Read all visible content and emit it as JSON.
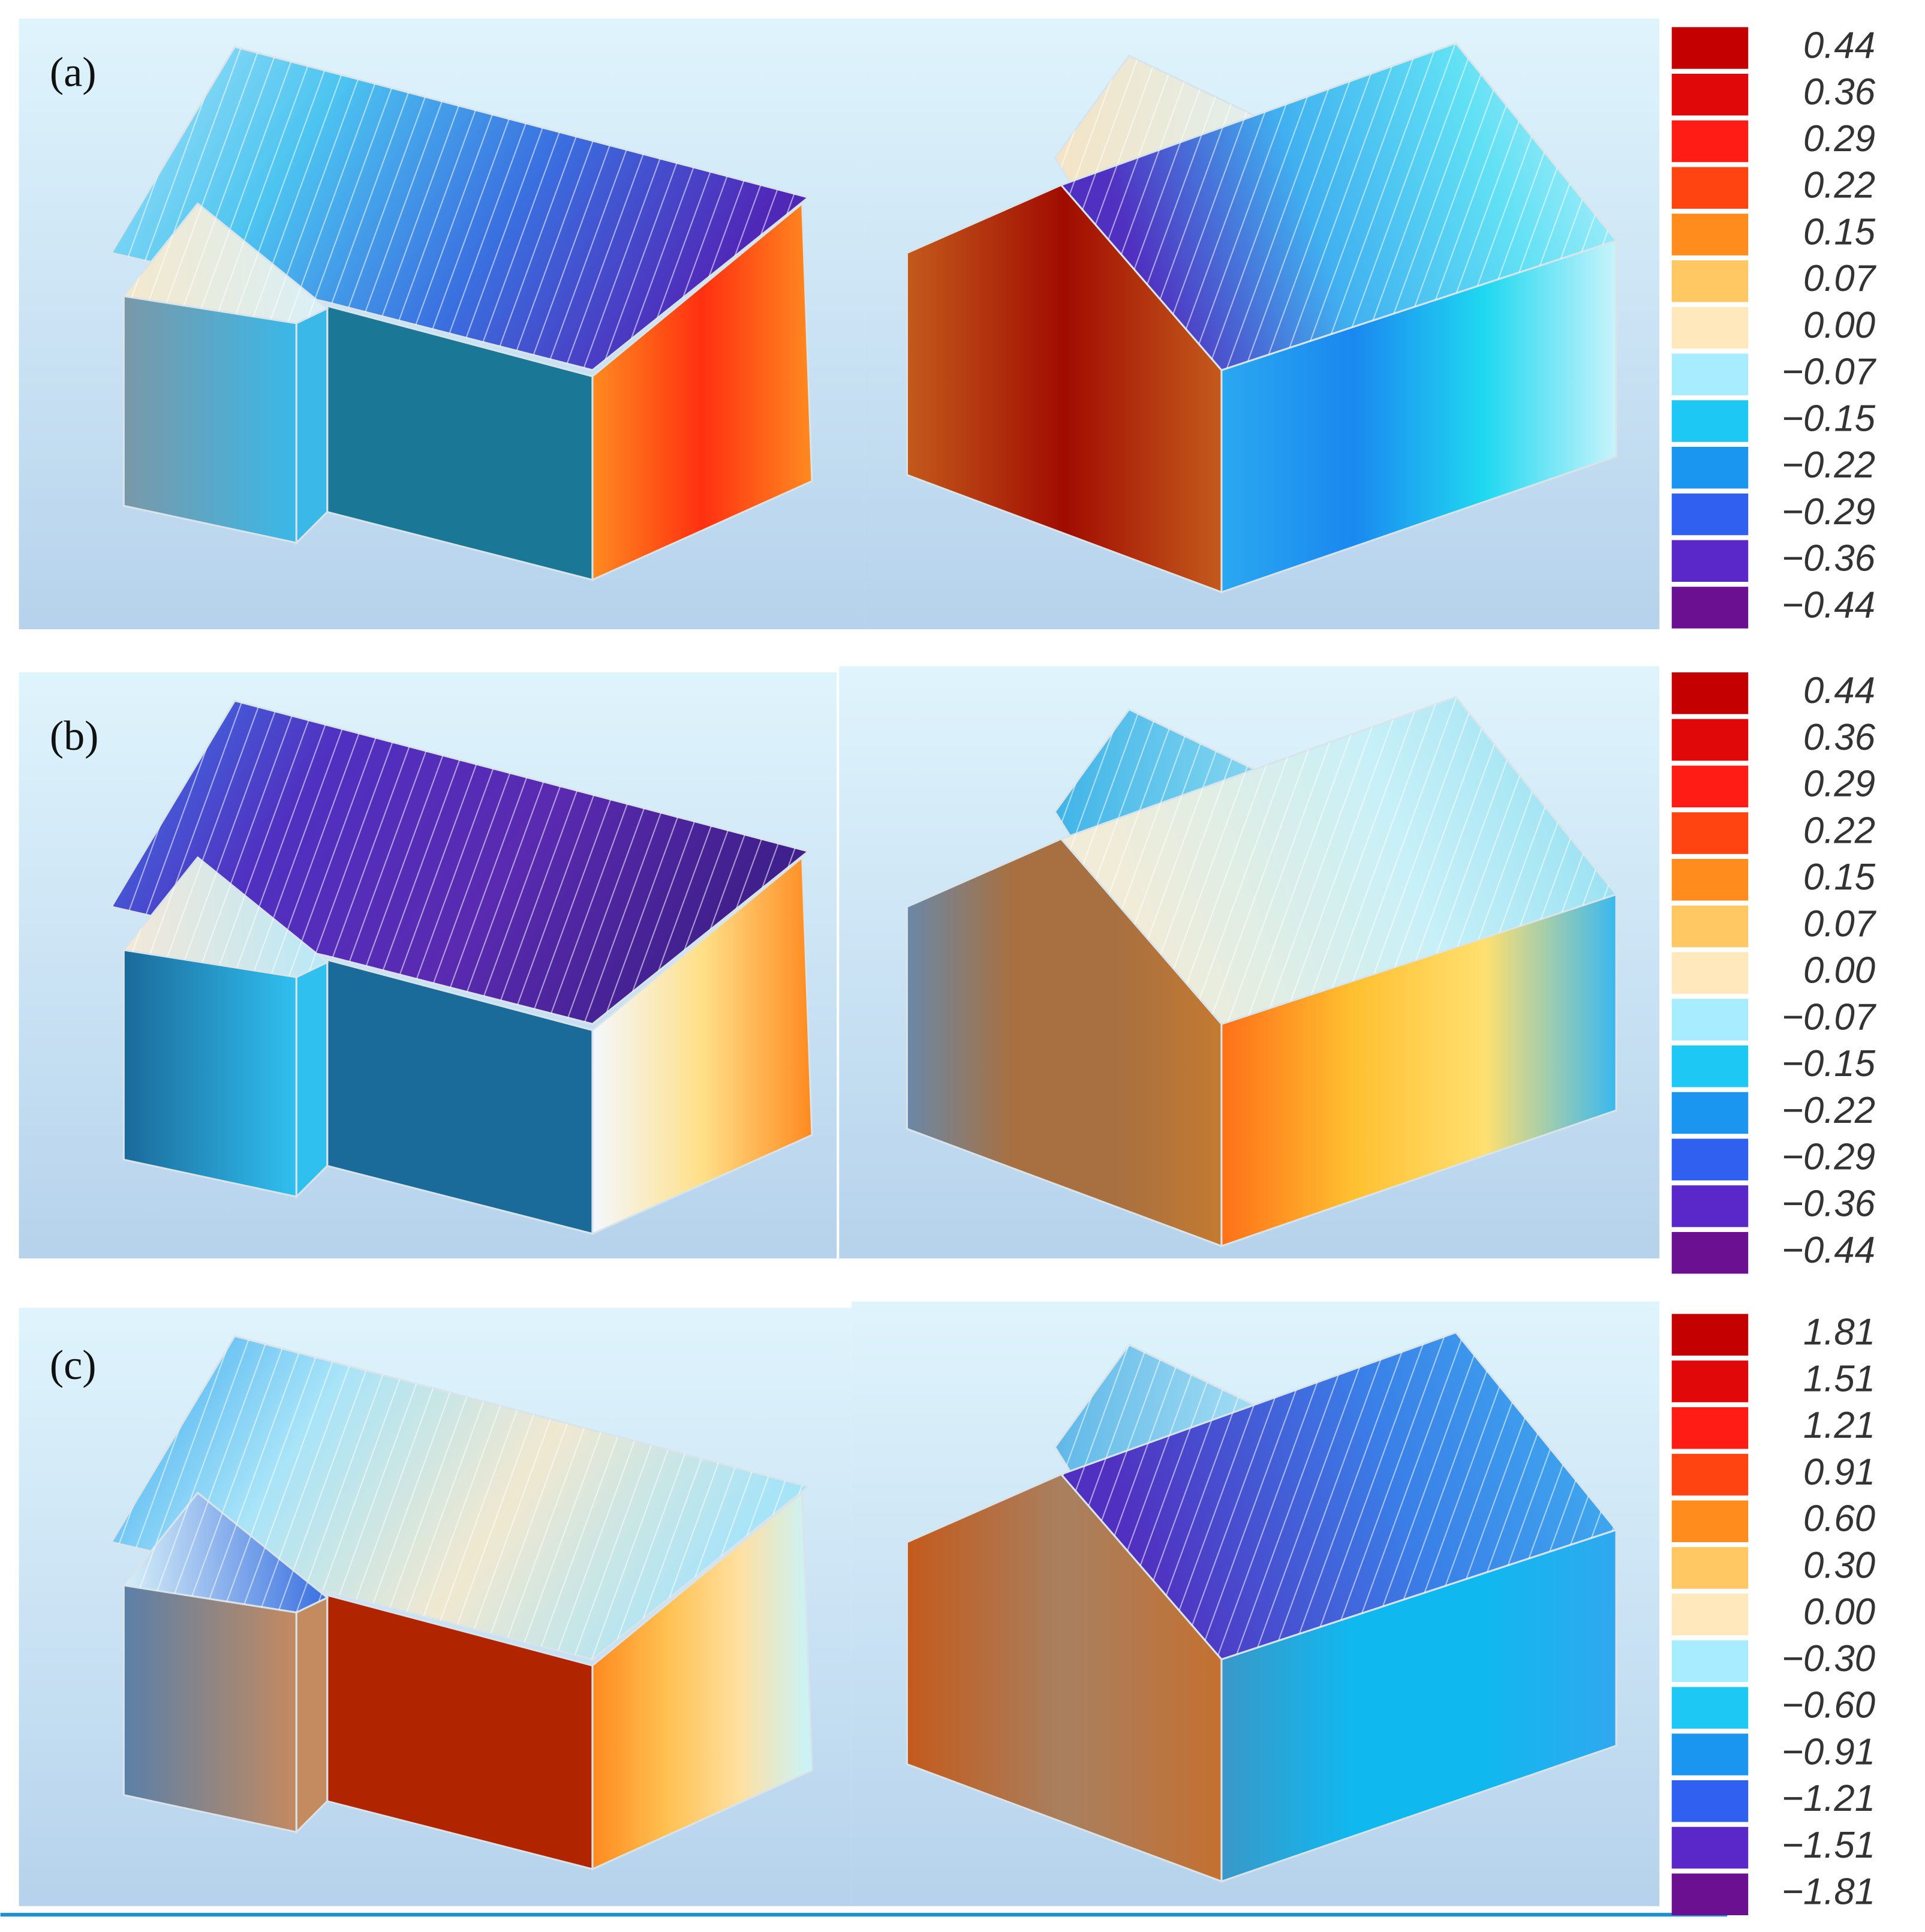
{
  "panels": [
    {
      "label": "(a)",
      "legend": [
        {
          "label": "0.44",
          "color": "#c40000"
        },
        {
          "label": "0.36",
          "color": "#e00808"
        },
        {
          "label": "0.29",
          "color": "#ff1c14"
        },
        {
          "label": "0.22",
          "color": "#ff4412"
        },
        {
          "label": "0.15",
          "color": "#ff8c1c"
        },
        {
          "label": "0.07",
          "color": "#ffc862"
        },
        {
          "label": "0.00",
          "color": "#ffe8bc"
        },
        {
          "label": "−0.07",
          "color": "#a8ecff"
        },
        {
          "label": "−0.15",
          "color": "#1ec8f5"
        },
        {
          "label": "−0.22",
          "color": "#1a96f0"
        },
        {
          "label": "−0.29",
          "color": "#3060f0"
        },
        {
          "label": "−0.36",
          "color": "#5a28c8"
        },
        {
          "label": "−0.44",
          "color": "#6a1090"
        }
      ]
    },
    {
      "label": "(b)",
      "legend": [
        {
          "label": "0.44",
          "color": "#c40000"
        },
        {
          "label": "0.36",
          "color": "#e00808"
        },
        {
          "label": "0.29",
          "color": "#ff1c14"
        },
        {
          "label": "0.22",
          "color": "#ff4412"
        },
        {
          "label": "0.15",
          "color": "#ff8c1c"
        },
        {
          "label": "0.07",
          "color": "#ffc862"
        },
        {
          "label": "0.00",
          "color": "#ffe8bc"
        },
        {
          "label": "−0.07",
          "color": "#a8ecff"
        },
        {
          "label": "−0.15",
          "color": "#1ec8f5"
        },
        {
          "label": "−0.22",
          "color": "#1a96f0"
        },
        {
          "label": "−0.29",
          "color": "#3060f0"
        },
        {
          "label": "−0.36",
          "color": "#5a28c8"
        },
        {
          "label": "−0.44",
          "color": "#6a1090"
        }
      ]
    },
    {
      "label": "(c)",
      "legend": [
        {
          "label": "1.81",
          "color": "#c40000"
        },
        {
          "label": "1.51",
          "color": "#e00808"
        },
        {
          "label": "1.21",
          "color": "#ff1c14"
        },
        {
          "label": "0.91",
          "color": "#ff4412"
        },
        {
          "label": "0.60",
          "color": "#ff8c1c"
        },
        {
          "label": "0.30",
          "color": "#ffc862"
        },
        {
          "label": "0.00",
          "color": "#ffe8bc"
        },
        {
          "label": "−0.30",
          "color": "#a8ecff"
        },
        {
          "label": "−0.60",
          "color": "#1ec8f5"
        },
        {
          "label": "−0.91",
          "color": "#1a96f0"
        },
        {
          "label": "−1.21",
          "color": "#3060f0"
        },
        {
          "label": "−1.51",
          "color": "#5a28c8"
        },
        {
          "label": "−1.81",
          "color": "#6a1090"
        }
      ]
    }
  ]
}
